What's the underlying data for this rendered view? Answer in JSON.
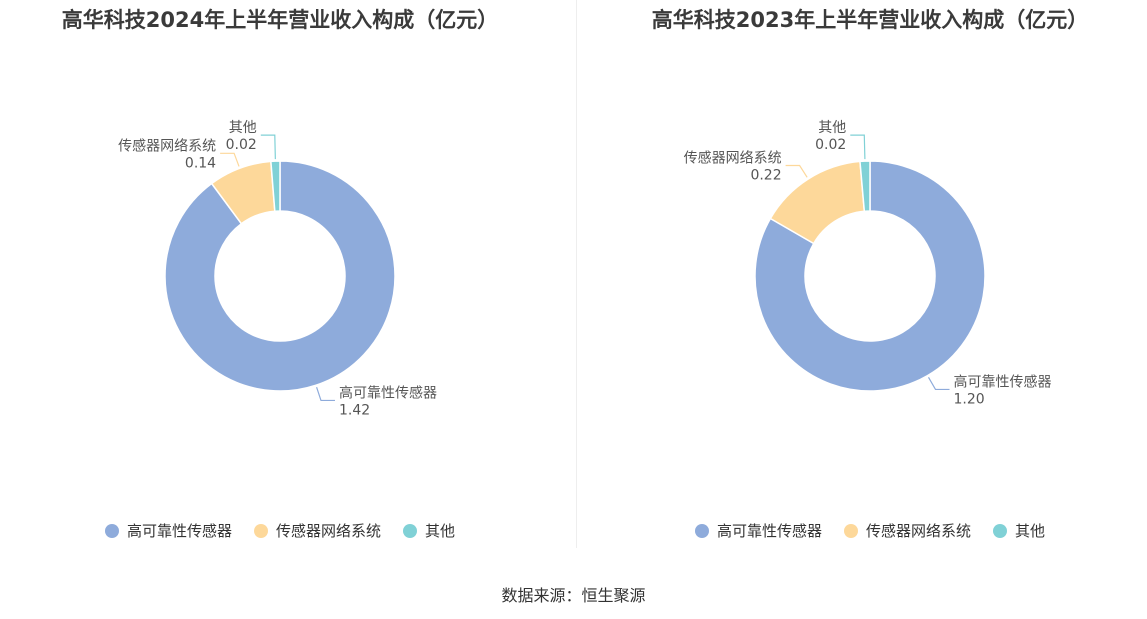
{
  "colors": {
    "high_reliability": "#8eabdb",
    "network": "#fdd89a",
    "other": "#80d1d6"
  },
  "chart_data": [
    {
      "type": "pie",
      "title": "高华科技2024年上半年营业收入构成（亿元）",
      "series": [
        {
          "name": "高可靠性传感器",
          "value": 1.42
        },
        {
          "name": "传感器网络系统",
          "value": 0.14
        },
        {
          "name": "其他",
          "value": 0.02
        }
      ],
      "value_labels": [
        "1.42",
        "0.14",
        "0.02"
      ],
      "legend_placement": "bottom"
    },
    {
      "type": "pie",
      "title": "高华科技2023年上半年营业收入构成（亿元）",
      "series": [
        {
          "name": "高可靠性传感器",
          "value": 1.2
        },
        {
          "name": "传感器网络系统",
          "value": 0.22
        },
        {
          "name": "其他",
          "value": 0.02
        }
      ],
      "value_labels": [
        "1.20",
        "0.22",
        "0.02"
      ],
      "legend_placement": "bottom"
    }
  ],
  "legend": [
    "高可靠性传感器",
    "传感器网络系统",
    "其他"
  ],
  "source": {
    "label": "数据来源：",
    "name": "恒生聚源"
  }
}
